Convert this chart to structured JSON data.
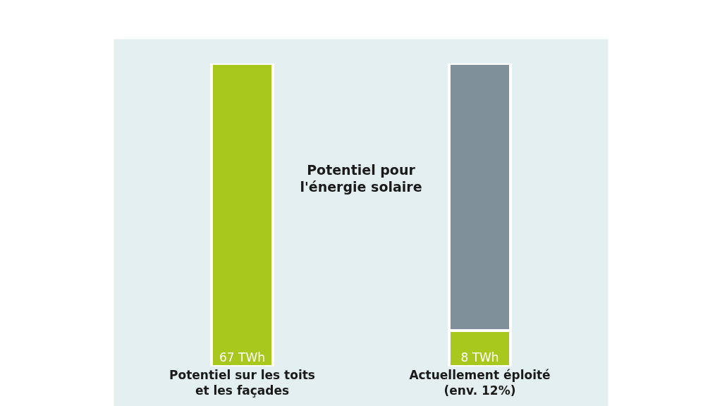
{
  "chart_data": {
    "type": "bar",
    "title": "Potentiel pour\nl'énergie solaire",
    "categories": [
      "Potentiel sur les toits\net les façades",
      "Actuellement éploité\n(env. 12%)"
    ],
    "stacked": true,
    "legend": false,
    "series": [
      {
        "color": "#a8c81e",
        "values": [
          67,
          8
        ],
        "value_labels": [
          "67 TWh",
          "8 TWh"
        ]
      },
      {
        "color": "#7f909a",
        "values": [
          null,
          59
        ]
      }
    ]
  }
}
